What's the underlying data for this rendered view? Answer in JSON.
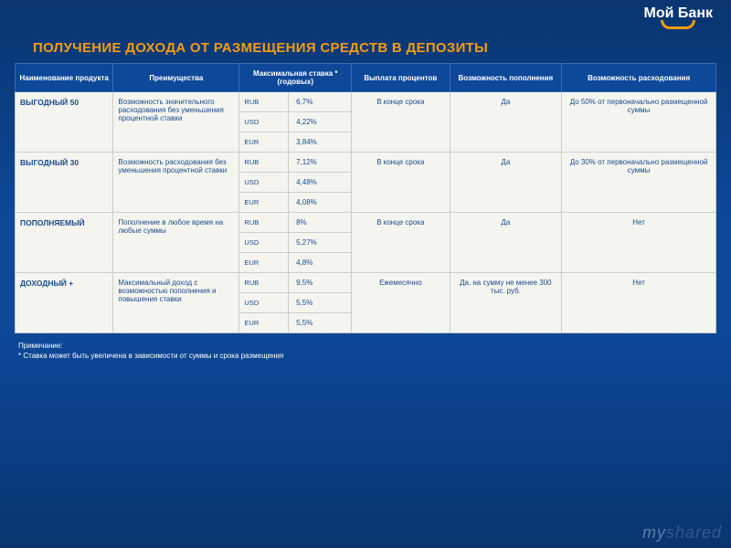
{
  "logo": {
    "text": "Мой Банк"
  },
  "title": "ПОЛУЧЕНИЕ ДОХОДА ОТ РАЗМЕЩЕНИЯ СРЕДСТВ В ДЕПОЗИТЫ",
  "columns": [
    "Наименование продукта",
    "Преимущества",
    "Максимальная ставка * (годовых)",
    "Выплата процентов",
    "Возможность пополнения",
    "Возможность расходования"
  ],
  "column_widths": [
    "14%",
    "18%",
    "7%",
    "9%",
    "14%",
    "16%",
    "22%"
  ],
  "products": [
    {
      "name": "ВЫГОДНЫЙ 50",
      "advantage": "Возможность значительного расходования без уменьшения процентной ставки",
      "rates": [
        {
          "currency": "RUB",
          "rate": "6,7%"
        },
        {
          "currency": "USD",
          "rate": "4,22%"
        },
        {
          "currency": "EUR",
          "rate": "3,84%"
        }
      ],
      "payment": "В конце срока",
      "topup": "Да",
      "spend": "До 50% от первоначально размещенной суммы"
    },
    {
      "name": "ВЫГОДНЫЙ 30",
      "advantage": "Возможность расходования без уменьшения процентной ставки",
      "rates": [
        {
          "currency": "RUB",
          "rate": "7,12%"
        },
        {
          "currency": "USD",
          "rate": "4,48%"
        },
        {
          "currency": "EUR",
          "rate": "4,08%"
        }
      ],
      "payment": "В конце срока",
      "topup": "Да",
      "spend": "До 30% от первоначально размещенной суммы"
    },
    {
      "name": "ПОПОЛНЯЕМЫЙ",
      "advantage": "Пополнение в любое время на любые суммы",
      "rates": [
        {
          "currency": "RUB",
          "rate": "8%"
        },
        {
          "currency": "USD",
          "rate": "5,27%"
        },
        {
          "currency": "EUR",
          "rate": "4,8%"
        }
      ],
      "payment": "В конце срока",
      "topup": "Да",
      "spend": "Нет"
    },
    {
      "name": "ДОХОДНЫЙ +",
      "advantage": "Максимальный доход с возможностью пополнения и повышения ставки",
      "rates": [
        {
          "currency": "RUB",
          "rate": "9,5%"
        },
        {
          "currency": "USD",
          "rate": "5,5%"
        },
        {
          "currency": "EUR",
          "rate": "5,5%"
        }
      ],
      "payment": "Ежемесячно",
      "topup": "Да, на сумму не менее 300 тыс. руб.",
      "spend": "Нет"
    }
  ],
  "footnote_label": "Примечание:",
  "footnote_text": "* Ставка может быть увеличена в зависимости от суммы и срока размещения",
  "watermark_a": "my",
  "watermark_b": "shared"
}
